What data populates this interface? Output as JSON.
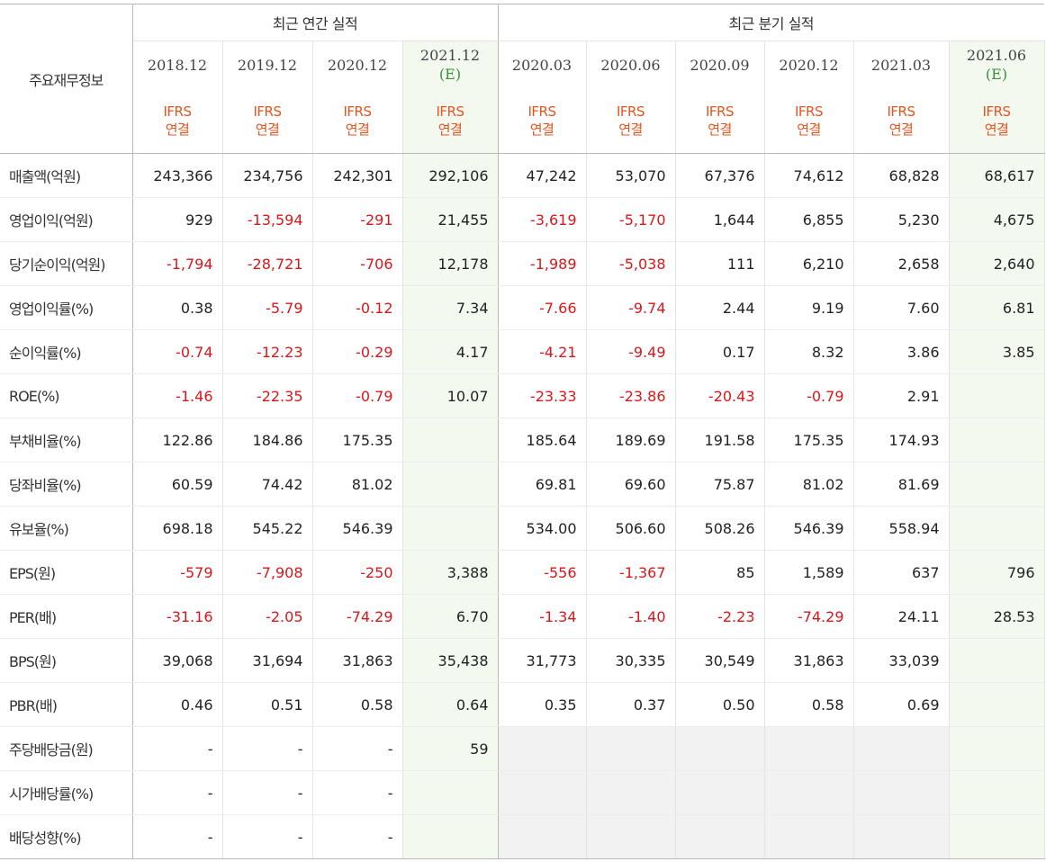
{
  "header": {
    "corner_label": "주요재무정보",
    "annual_group": "최근 연간 실적",
    "quarter_group": "최근 분기 실적",
    "periods": [
      {
        "date": "2018.12",
        "est": ""
      },
      {
        "date": "2019.12",
        "est": ""
      },
      {
        "date": "2020.12",
        "est": ""
      },
      {
        "date": "2021.12",
        "est": "(E)"
      },
      {
        "date": "2020.03",
        "est": ""
      },
      {
        "date": "2020.06",
        "est": ""
      },
      {
        "date": "2020.09",
        "est": ""
      },
      {
        "date": "2020.12",
        "est": ""
      },
      {
        "date": "2021.03",
        "est": ""
      },
      {
        "date": "2021.06",
        "est": "(E)"
      }
    ],
    "ifrs_line1": "IFRS",
    "ifrs_line2": "연결"
  },
  "rows": [
    {
      "label": "매출액(억원)",
      "values": [
        "243,366",
        "234,756",
        "242,301",
        "292,106",
        "47,242",
        "53,070",
        "67,376",
        "74,612",
        "68,828",
        "68,617"
      ]
    },
    {
      "label": "영업이익(억원)",
      "values": [
        "929",
        "-13,594",
        "-291",
        "21,455",
        "-3,619",
        "-5,170",
        "1,644",
        "6,855",
        "5,230",
        "4,675"
      ]
    },
    {
      "label": "당기순이익(억원)",
      "values": [
        "-1,794",
        "-28,721",
        "-706",
        "12,178",
        "-1,989",
        "-5,038",
        "111",
        "6,210",
        "2,658",
        "2,640"
      ]
    },
    {
      "label": "영업이익률(%)",
      "values": [
        "0.38",
        "-5.79",
        "-0.12",
        "7.34",
        "-7.66",
        "-9.74",
        "2.44",
        "9.19",
        "7.60",
        "6.81"
      ]
    },
    {
      "label": "순이익률(%)",
      "values": [
        "-0.74",
        "-12.23",
        "-0.29",
        "4.17",
        "-4.21",
        "-9.49",
        "0.17",
        "8.32",
        "3.86",
        "3.85"
      ]
    },
    {
      "label": "ROE(%)",
      "values": [
        "-1.46",
        "-22.35",
        "-0.79",
        "10.07",
        "-23.33",
        "-23.86",
        "-20.43",
        "-0.79",
        "2.91",
        ""
      ]
    },
    {
      "label": "부채비율(%)",
      "values": [
        "122.86",
        "184.86",
        "175.35",
        "",
        "185.64",
        "189.69",
        "191.58",
        "175.35",
        "174.93",
        ""
      ]
    },
    {
      "label": "당좌비율(%)",
      "values": [
        "60.59",
        "74.42",
        "81.02",
        "",
        "69.81",
        "69.60",
        "75.87",
        "81.02",
        "81.69",
        ""
      ]
    },
    {
      "label": "유보율(%)",
      "values": [
        "698.18",
        "545.22",
        "546.39",
        "",
        "534.00",
        "506.60",
        "508.26",
        "546.39",
        "558.94",
        ""
      ]
    },
    {
      "label": "EPS(원)",
      "values": [
        "-579",
        "-7,908",
        "-250",
        "3,388",
        "-556",
        "-1,367",
        "85",
        "1,589",
        "637",
        "796"
      ]
    },
    {
      "label": "PER(배)",
      "values": [
        "-31.16",
        "-2.05",
        "-74.29",
        "6.70",
        "-1.34",
        "-1.40",
        "-2.23",
        "-74.29",
        "24.11",
        "28.53"
      ]
    },
    {
      "label": "BPS(원)",
      "values": [
        "39,068",
        "31,694",
        "31,863",
        "35,438",
        "31,773",
        "30,335",
        "30,549",
        "31,863",
        "33,039",
        ""
      ]
    },
    {
      "label": "PBR(배)",
      "values": [
        "0.46",
        "0.51",
        "0.58",
        "0.64",
        "0.35",
        "0.37",
        "0.50",
        "0.58",
        "0.69",
        ""
      ]
    },
    {
      "label": "주당배당금(원)",
      "values": [
        "-",
        "-",
        "-",
        "59",
        "",
        "",
        "",
        "",
        "",
        ""
      ]
    },
    {
      "label": "시가배당률(%)",
      "values": [
        "-",
        "-",
        "-",
        "",
        "",
        "",
        "",
        "",
        "",
        ""
      ]
    },
    {
      "label": "배당성향(%)",
      "values": [
        "-",
        "-",
        "-",
        "",
        "",
        "",
        "",
        "",
        "",
        ""
      ]
    }
  ],
  "colors": {
    "negative": "#d8171b",
    "ifrs": "#e2551f",
    "estimate": "#3a8f3a",
    "forecast_bg": "#f4f9f0",
    "empty_quarter_bg": "#f2f2f2"
  }
}
